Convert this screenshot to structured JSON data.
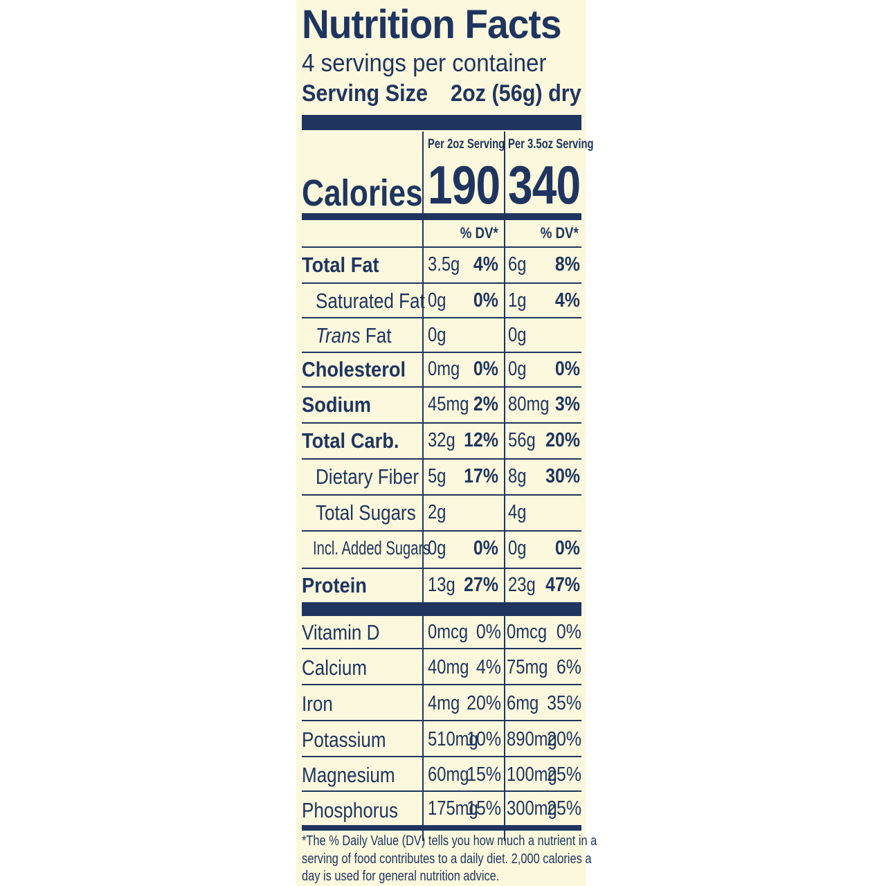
{
  "label": {
    "title": "Nutrition Facts",
    "servings_per_container": "4 servings per container",
    "serving_size_label": "Serving Size",
    "serving_size_value": "2oz (56g) dry",
    "column_1_header": "Per 2oz Serving",
    "column_2_header": "Per 3.5oz Serving",
    "calories_label": "Calories",
    "calories_1": "190",
    "calories_2": "340",
    "dv_header_1": "% DV*",
    "dv_header_2": "% DV*",
    "nutrients": [
      {
        "name": "Total Fat",
        "v1": "3.5g",
        "p1": "4%",
        "v2": "6g",
        "p2": "8%"
      },
      {
        "name": "Saturated Fat",
        "v1": "0g",
        "p1": "0%",
        "v2": "1g",
        "p2": "4%"
      },
      {
        "name_italic": "Trans",
        "name_rest": " Fat",
        "v1": "0g",
        "p1": "",
        "v2": "0g",
        "p2": ""
      },
      {
        "name": "Cholesterol",
        "v1": "0mg",
        "p1": "0%",
        "v2": "0g",
        "p2": "0%"
      },
      {
        "name": "Sodium",
        "v1": "45mg",
        "p1": "2%",
        "v2": "80mg",
        "p2": "3%"
      },
      {
        "name": "Total Carb.",
        "v1": "32g",
        "p1": "12%",
        "v2": "56g",
        "p2": "20%"
      },
      {
        "name": "Dietary Fiber",
        "v1": "5g",
        "p1": "17%",
        "v2": "8g",
        "p2": "30%"
      },
      {
        "name": "Total Sugars",
        "v1": "2g",
        "p1": "",
        "v2": "4g",
        "p2": ""
      },
      {
        "name": "Incl. Added Sugars",
        "v1": "0g",
        "p1": "0%",
        "v2": "0g",
        "p2": "0%"
      },
      {
        "name": "Protein",
        "v1": "13g",
        "p1": "27%",
        "v2": "23g",
        "p2": "47%"
      }
    ],
    "vitamins": [
      {
        "name": "Vitamin D",
        "v1": "0mcg",
        "p1": "0%",
        "v2": "0mcg",
        "p2": "0%"
      },
      {
        "name": "Calcium",
        "v1": "40mg",
        "p1": "4%",
        "v2": "75mg",
        "p2": "6%"
      },
      {
        "name": "Iron",
        "v1": "4mg",
        "p1": "20%",
        "v2": "6mg",
        "p2": "35%"
      },
      {
        "name": "Potassium",
        "v1": "510mg",
        "p1": "10%",
        "v2": "890mg",
        "p2": "20%"
      },
      {
        "name": "Magnesium",
        "v1": "60mg",
        "p1": "15%",
        "v2": "100mg",
        "p2": "25%"
      },
      {
        "name": "Phosphorus",
        "v1": "175mg",
        "p1": "15%",
        "v2": "300mg",
        "p2": "25%"
      }
    ],
    "footnote_1": "*The % Daily Value (DV) tells you how much a nutrient in a",
    "footnote_2": "serving of food contributes to a daily diet. 2,000 calories a",
    "footnote_3": "day is used for general nutrition advice.",
    "colors": {
      "ink": "#1f3560",
      "background": "#fbf8dd"
    }
  }
}
